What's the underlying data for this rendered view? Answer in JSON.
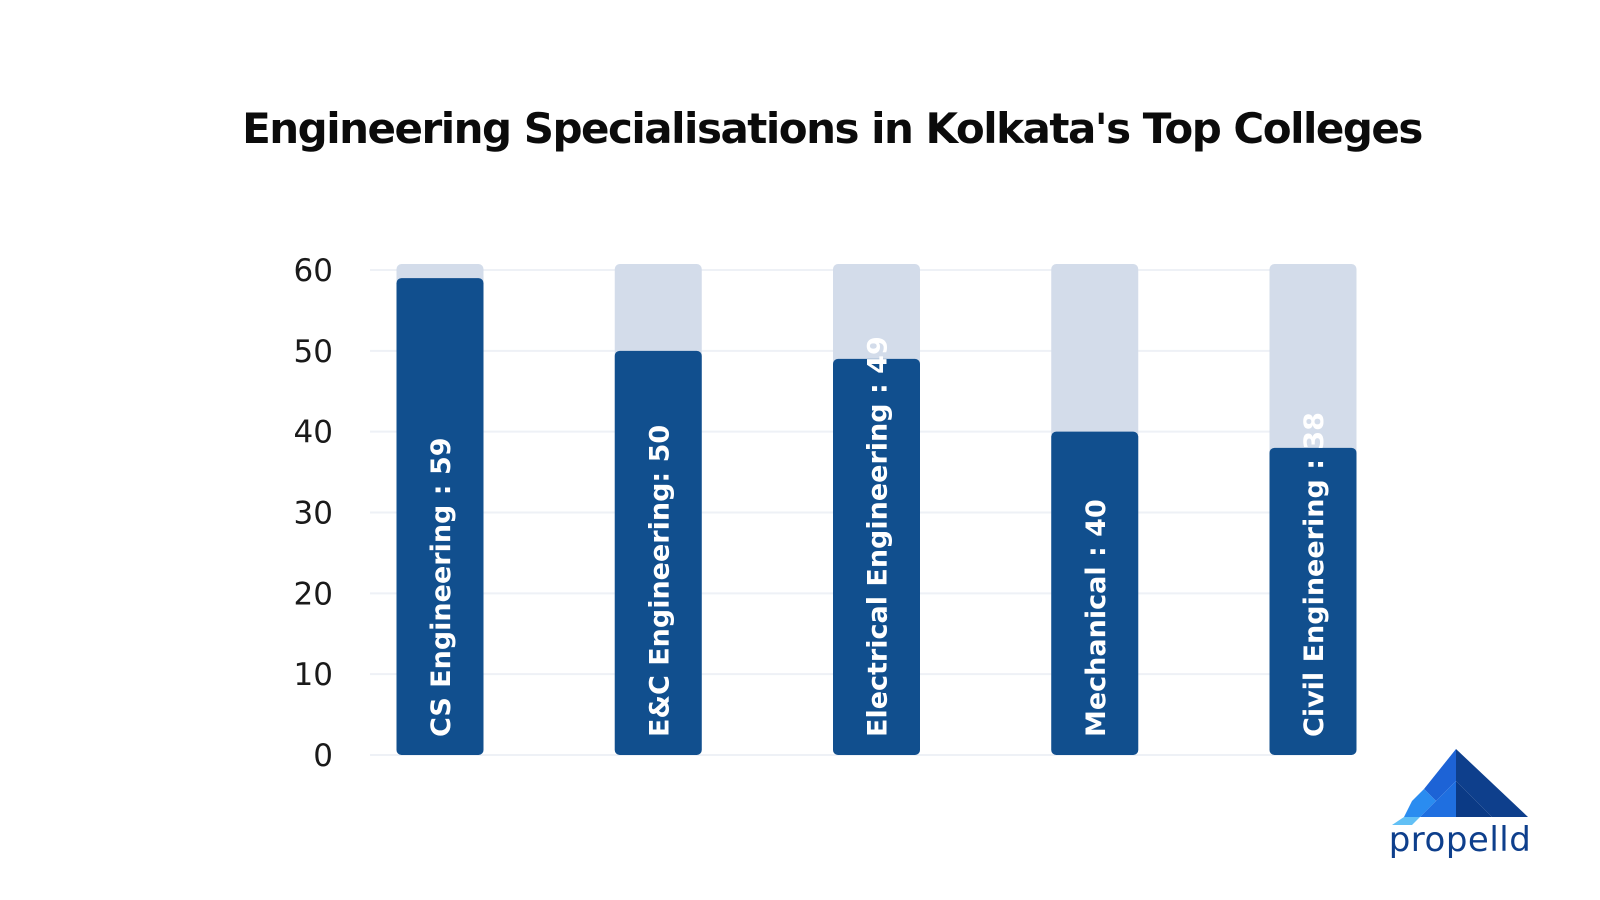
{
  "chart_data": {
    "type": "bar",
    "title": "Engineering Specialisations in Kolkata's Top Colleges",
    "categories": [
      "CS Engineering",
      "E&C Engineering",
      "Electrical Engineering",
      "Mechanical",
      "Civil Engineering"
    ],
    "values": [
      59,
      50,
      49,
      40,
      38
    ],
    "bar_labels": [
      "CS Engineering : 59",
      "E&C Engineering: 50",
      "Electrical Engineering : 49",
      "Mechanical : 40",
      "Civil Engineering : 38"
    ],
    "yticks": [
      0,
      10,
      20,
      30,
      40,
      50,
      60
    ],
    "ylim": [
      0,
      60
    ],
    "background_value": 60,
    "colors": {
      "bar": "#114f8e",
      "bar_background": "#d3dcea",
      "grid": "#eef1f6",
      "label": "#ffffff",
      "tick": "#1a1a1a"
    },
    "grid": true,
    "legend": "none"
  },
  "brand": {
    "name": "propelld",
    "colors": [
      "#2a8cf0",
      "#1d63d6",
      "#0e3f8c",
      "#62c0f5"
    ]
  }
}
